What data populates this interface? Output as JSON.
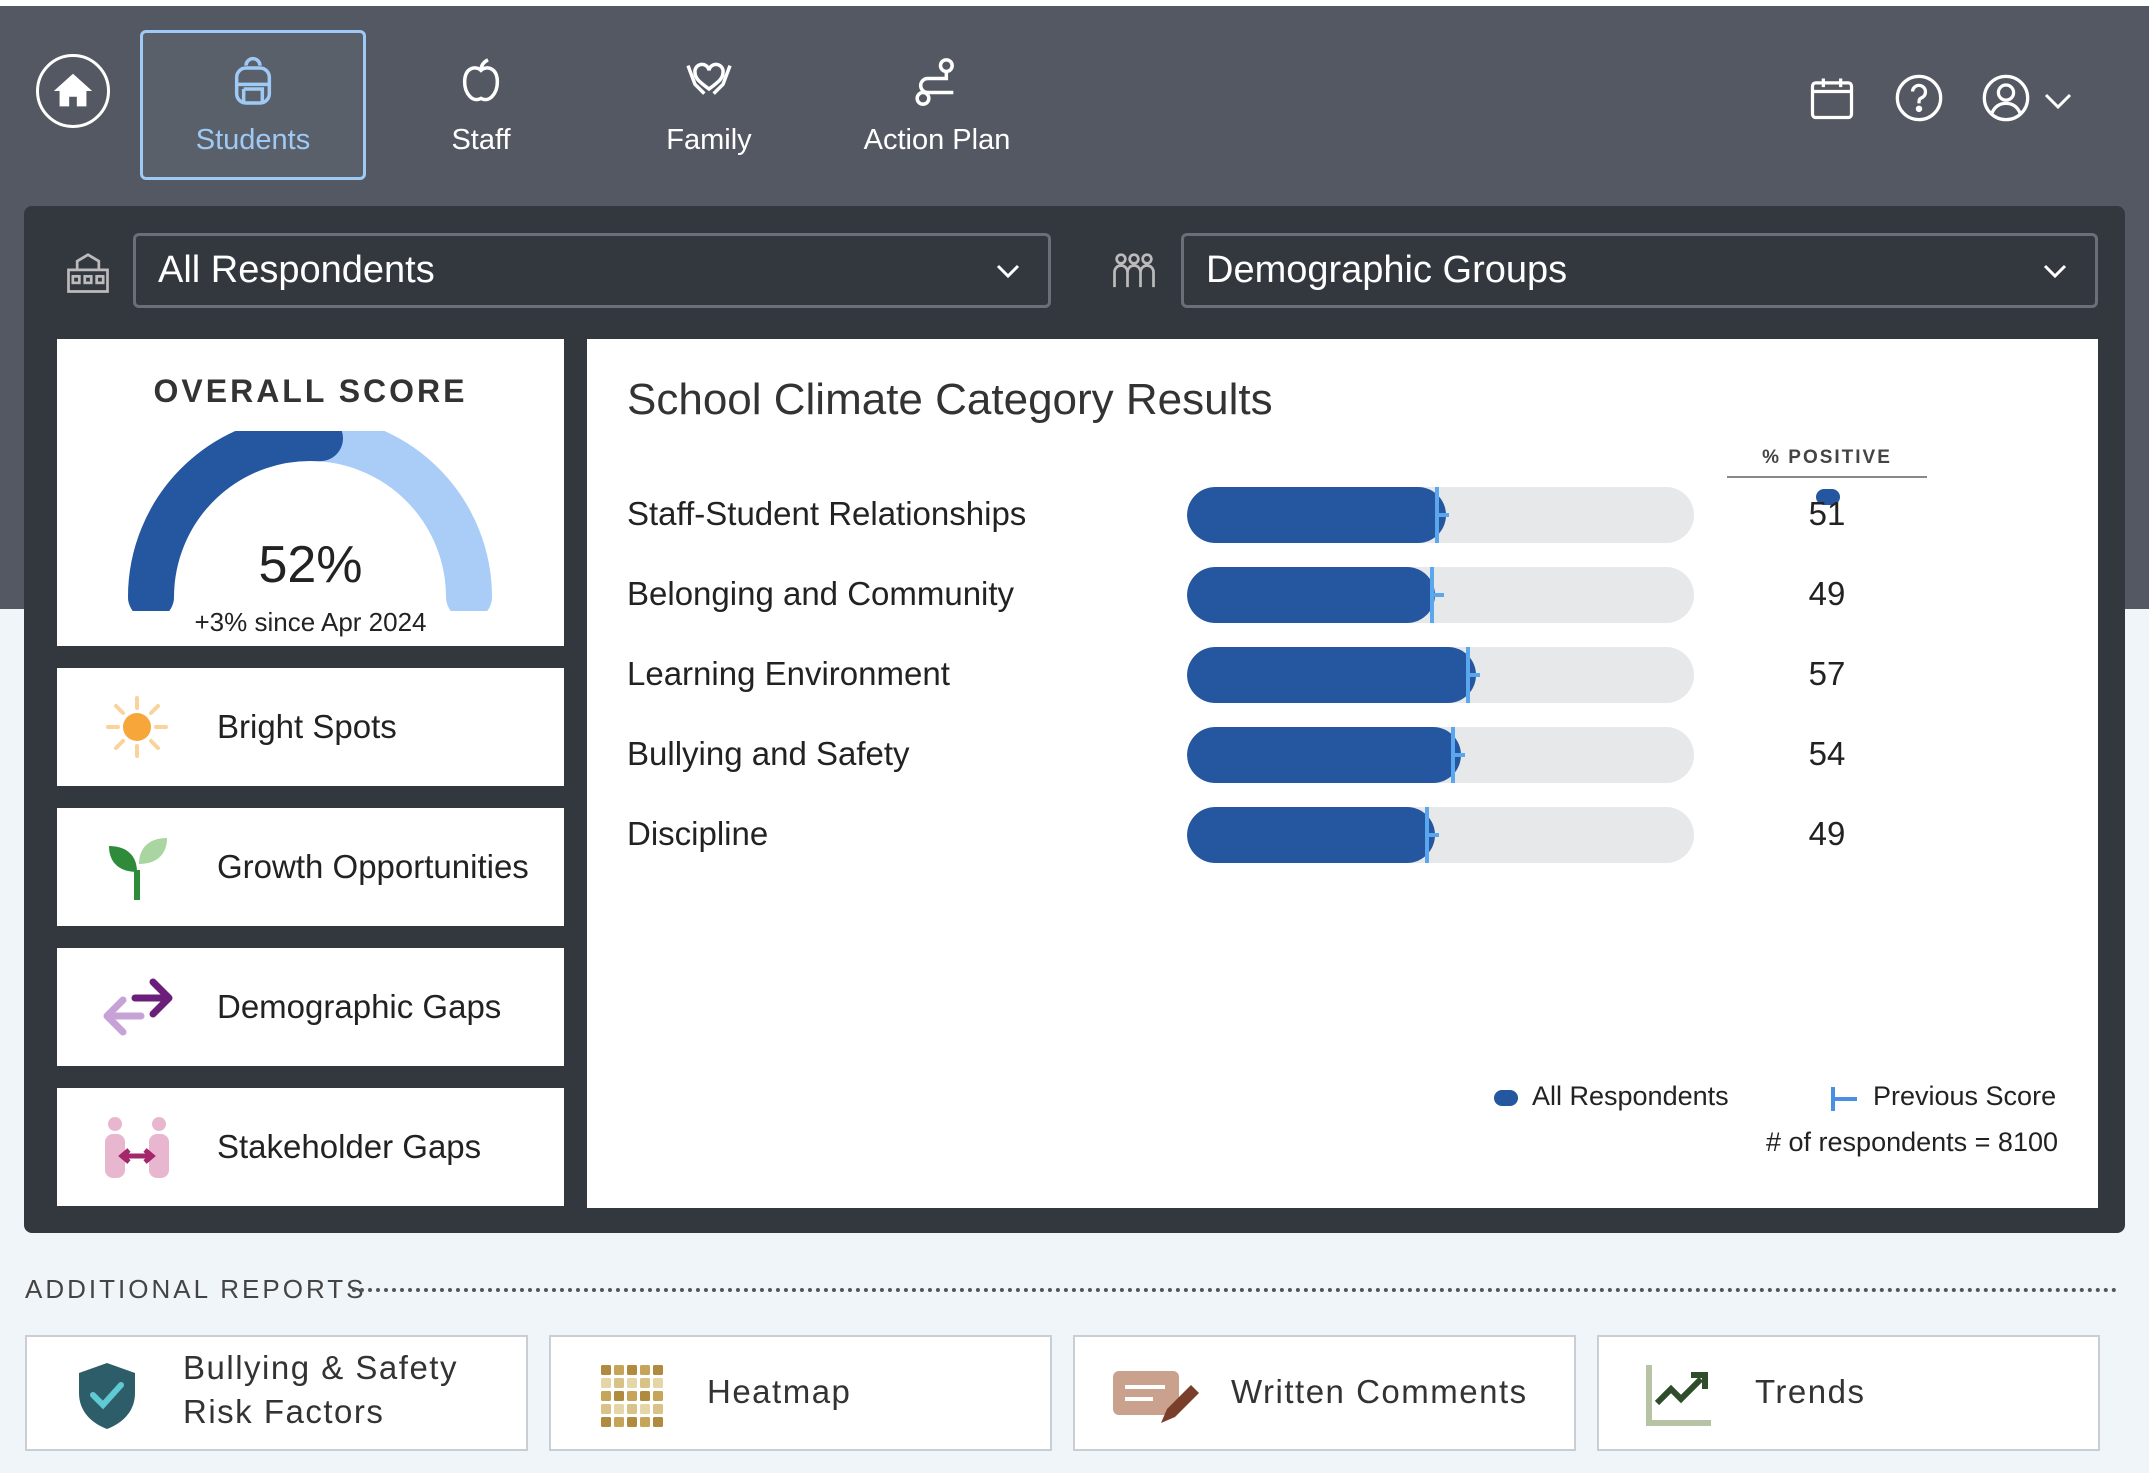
{
  "nav": {
    "tabs": [
      {
        "label": "Students",
        "active": true
      },
      {
        "label": "Staff"
      },
      {
        "label": "Family"
      },
      {
        "label": "Action Plan"
      }
    ],
    "tools": [
      "calendar-icon",
      "help-icon",
      "user-icon"
    ]
  },
  "filters": {
    "respondents": "All Respondents",
    "groups": "Demographic Groups"
  },
  "overall": {
    "title": "OVERALL SCORE",
    "score_label": "52%",
    "score_value": 52,
    "change": "+3% since Apr 2024"
  },
  "insights": [
    {
      "label": "Bright Spots",
      "icon": "sun-icon"
    },
    {
      "label": "Growth Opportunities",
      "icon": "sprout-icon"
    },
    {
      "label": "Demographic Gaps",
      "icon": "arrows-icon"
    },
    {
      "label": "Stakeholder Gaps",
      "icon": "people-icon"
    }
  ],
  "results": {
    "title": "School Climate Category Results",
    "column_header": "% POSITIVE",
    "legend_all": "All Respondents",
    "legend_prev": "Previous Score",
    "respondents_note": "# of respondents = 8100"
  },
  "chart_data": {
    "type": "bar",
    "title": "School Climate Category Results",
    "categories": [
      "Staff-Student Relationships",
      "Belonging and Community",
      "Learning Environment",
      "Bullying and Safety",
      "Discipline"
    ],
    "series": [
      {
        "name": "All Respondents",
        "values": [
          51,
          49,
          57,
          54,
          49
        ]
      },
      {
        "name": "Previous Score",
        "values": [
          49,
          48,
          55,
          52,
          47
        ]
      }
    ],
    "ylim": [
      0,
      100
    ],
    "colors": {
      "fill": "#24579f",
      "previous": "#5aa7f0",
      "track": "#e7e8ea"
    }
  },
  "additional": {
    "title": "ADDITIONAL REPORTS",
    "reports": [
      {
        "label_line1": "Bullying & Safety",
        "label_line2": "Risk Factors",
        "icon": "shield-check-icon"
      },
      {
        "label_line1": "Heatmap",
        "icon": "grid-icon"
      },
      {
        "label_line1": "Written Comments",
        "icon": "comment-pen-icon"
      },
      {
        "label_line1": "Trends",
        "icon": "trend-chart-icon"
      }
    ]
  },
  "colors": {
    "header": "#535862",
    "panel": "#33373e",
    "accent": "#24579f",
    "active_tab": "#9fcaf5"
  }
}
